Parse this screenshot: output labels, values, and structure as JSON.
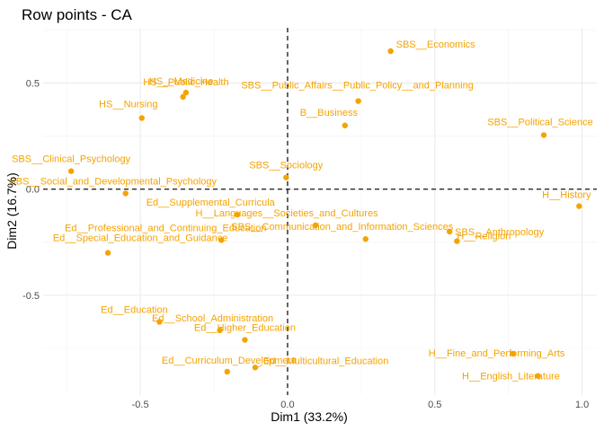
{
  "chart_data": {
    "type": "scatter",
    "title": "Row points - CA",
    "xlabel": "Dim1 (33.2%)",
    "ylabel": "Dim2 (16.7%)",
    "xlim": [
      -0.83,
      1.05
    ],
    "ylim": [
      -0.97,
      0.76
    ],
    "xticks": [
      -0.5,
      0.0,
      0.5,
      1.0
    ],
    "xtick_labels": [
      "-0.5",
      "0.0",
      "0.5",
      "1.0"
    ],
    "yticks": [
      -0.5,
      0.0,
      0.5
    ],
    "ytick_labels": [
      "-0.5",
      "0.0",
      "0.5"
    ],
    "grid": true,
    "reference_lines": {
      "x": 0,
      "y": 0,
      "style": "dashed"
    },
    "point_color": "#f5a300",
    "points": [
      {
        "label": "SBS__Economics",
        "x": 0.35,
        "y": 0.65
      },
      {
        "label": "HS__Public_Health",
        "x": -0.345,
        "y": 0.455
      },
      {
        "label": "HS__Medicine",
        "x": -0.355,
        "y": 0.435
      },
      {
        "label": "HS__Nursing",
        "x": -0.495,
        "y": 0.335
      },
      {
        "label": "SBS__Public_Affairs__Public_Policy__and_Planning",
        "x": 0.24,
        "y": 0.415
      },
      {
        "label": "B__Business",
        "x": 0.195,
        "y": 0.3
      },
      {
        "label": "SBS__Political_Science",
        "x": 0.87,
        "y": 0.255
      },
      {
        "label": "SBS__Clinical_Psychology",
        "x": -0.735,
        "y": 0.085
      },
      {
        "label": "SBS__Sociology",
        "x": -0.005,
        "y": 0.055
      },
      {
        "label": "SBS__Social_and_Developmental_Psychology",
        "x": -0.55,
        "y": -0.02
      },
      {
        "label": "Ed__Supplemental_Curricula",
        "x": -0.17,
        "y": -0.12
      },
      {
        "label": "H__History",
        "x": 0.99,
        "y": -0.08
      },
      {
        "label": "H__Languages__Societies_and_Cultures",
        "x": 0.095,
        "y": -0.17
      },
      {
        "label": "SBS__Anthropology",
        "x": 0.55,
        "y": -0.2
      },
      {
        "label": "H__Religion",
        "x": 0.575,
        "y": -0.245
      },
      {
        "label": "Ed__Professional_and_Continuing_Education",
        "x": -0.225,
        "y": -0.24
      },
      {
        "label": "SBS__Communication_and_Information_Sciences",
        "x": 0.265,
        "y": -0.235
      },
      {
        "label": "Ed__Special_Education_and_Guidance",
        "x": -0.61,
        "y": -0.3
      },
      {
        "label": "Ed__Education",
        "x": -0.435,
        "y": -0.625
      },
      {
        "label": "Ed__School_Administration",
        "x": -0.23,
        "y": -0.665
      },
      {
        "label": "Ed__Higher_Education",
        "x": -0.145,
        "y": -0.71
      },
      {
        "label": "Ed__Multicultural_Education",
        "x": -0.11,
        "y": -0.84
      },
      {
        "label": "Ed__Curriculum_Development",
        "x": -0.205,
        "y": -0.86
      },
      {
        "label": "H__Fine_and_Performing_Arts",
        "x": 0.765,
        "y": -0.775
      },
      {
        "label": "H__English_Literature",
        "x": 0.85,
        "y": -0.88
      }
    ]
  }
}
